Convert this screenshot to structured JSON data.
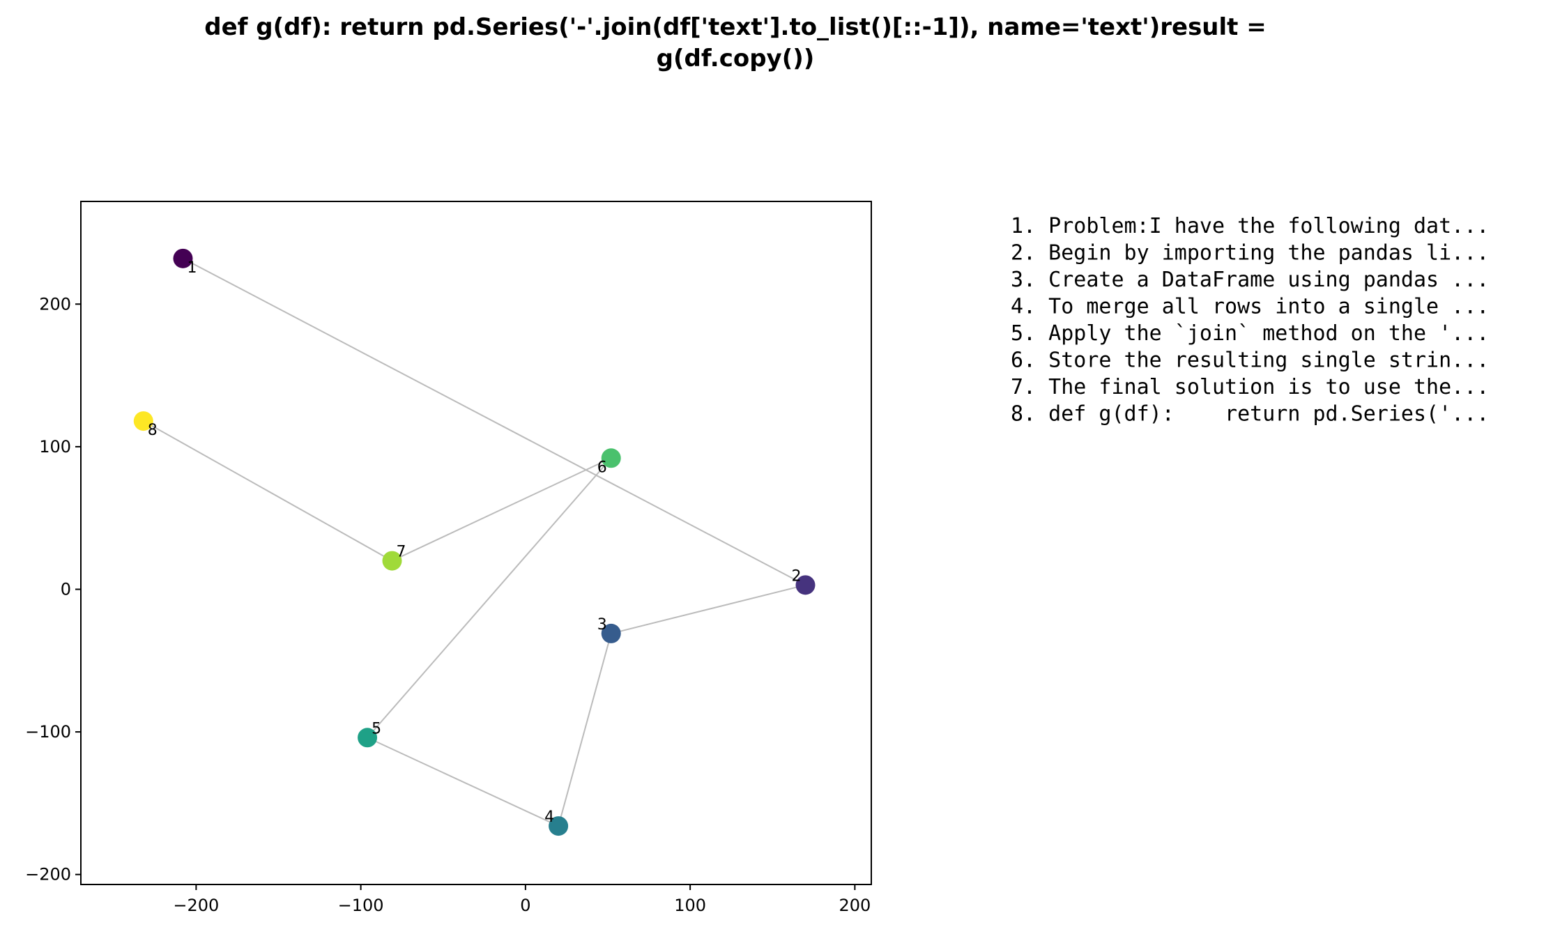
{
  "title_lines": [
    "def g(df):    return pd.Series('-'.join(df['text'].to_list()[::-1]), name='text')result =",
    "g(df.copy())"
  ],
  "chart_data": {
    "type": "scatter",
    "title": "def g(df):    return pd.Series('-'.join(df['text'].to_list()[::-1]), name='text')result = g(df.copy())",
    "xlabel": "",
    "ylabel": "",
    "xlim": [
      -270,
      210
    ],
    "ylim": [
      -207,
      272
    ],
    "xticks": [
      -200,
      -100,
      0,
      100,
      200
    ],
    "yticks": [
      -200,
      -100,
      0,
      100,
      200
    ],
    "xtick_labels": [
      "−200",
      "−100",
      "0",
      "100",
      "200"
    ],
    "ytick_labels": [
      "−200",
      "−100",
      "0",
      "100",
      "200"
    ],
    "grid": false,
    "connect_in_order": true,
    "line_color": "#bbbbbb",
    "points": [
      {
        "label": "1",
        "x": -208,
        "y": 232,
        "color": "#440154"
      },
      {
        "label": "2",
        "x": 170,
        "y": 3,
        "color": "#46337e"
      },
      {
        "label": "3",
        "x": 52,
        "y": -31,
        "color": "#365c8d"
      },
      {
        "label": "4",
        "x": 20,
        "y": -166,
        "color": "#277f8e"
      },
      {
        "label": "5",
        "x": -96,
        "y": -104,
        "color": "#1fa187"
      },
      {
        "label": "6",
        "x": 52,
        "y": 92,
        "color": "#4ac16d"
      },
      {
        "label": "7",
        "x": -81,
        "y": 20,
        "color": "#a0da39"
      },
      {
        "label": "8",
        "x": -232,
        "y": 118,
        "color": "#fde725"
      }
    ],
    "legend": {
      "placement": "right",
      "items": [
        "1. Problem:I have the following dat...",
        "2. Begin by importing the pandas li...",
        "3. Create a DataFrame using pandas ...",
        "4. To merge all rows into a single ...",
        "5. Apply the `join` method on the '...",
        "6. Store the resulting single strin...",
        "7. The final solution is to use the...",
        "8. def g(df):    return pd.Series('..."
      ]
    }
  }
}
